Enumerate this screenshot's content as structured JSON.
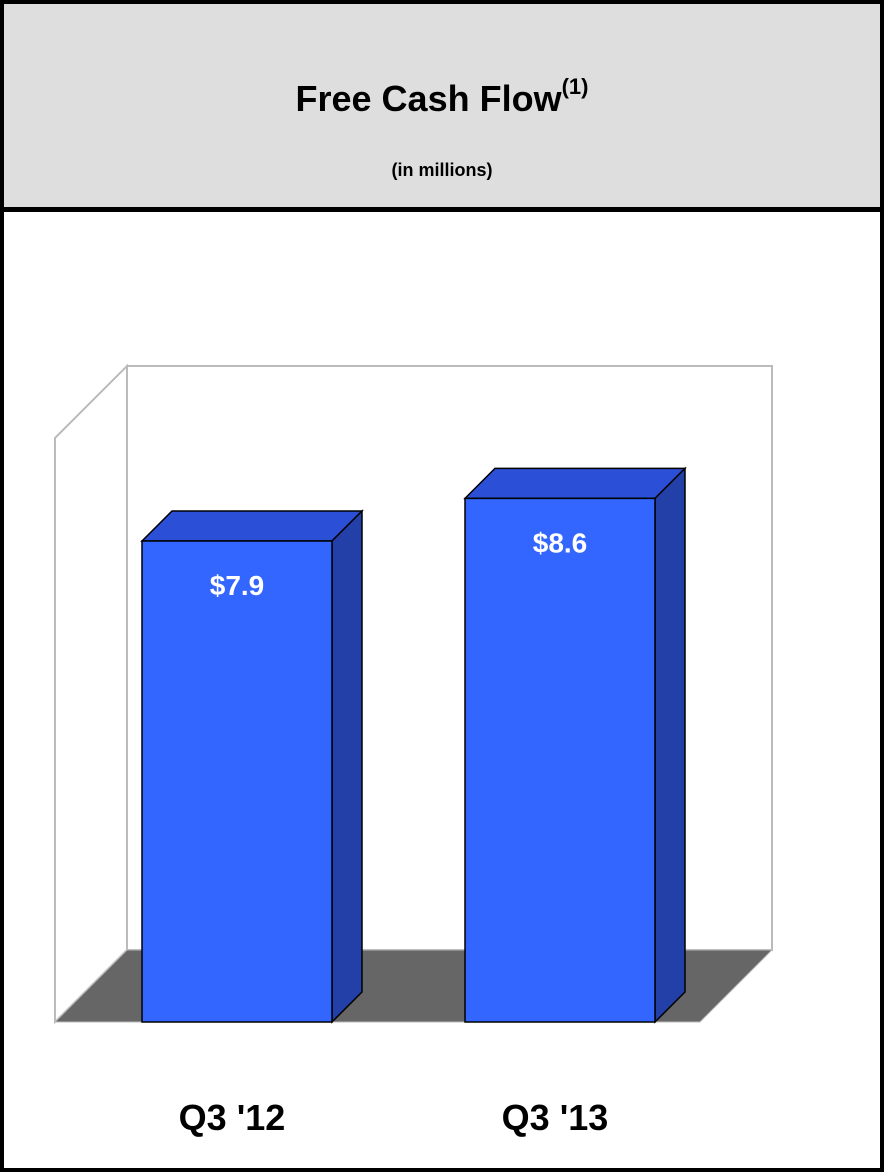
{
  "header": {
    "title": "Free Cash Flow",
    "title_superscript": "(1)",
    "subtitle": "(in millions)"
  },
  "chart_data": {
    "type": "bar",
    "categories": [
      "Q3 '12",
      "Q3 '13"
    ],
    "values": [
      7.9,
      8.6
    ],
    "value_labels": [
      "$7.9",
      "$8.6"
    ],
    "ylim": [
      0,
      10
    ],
    "grid": false,
    "style": "3d",
    "colors": {
      "bar_front": "#3366ff",
      "bar_top": "#2b4fd6",
      "bar_side": "#2240a8",
      "floor": "#666666",
      "wall": "#bbbbbb"
    }
  }
}
